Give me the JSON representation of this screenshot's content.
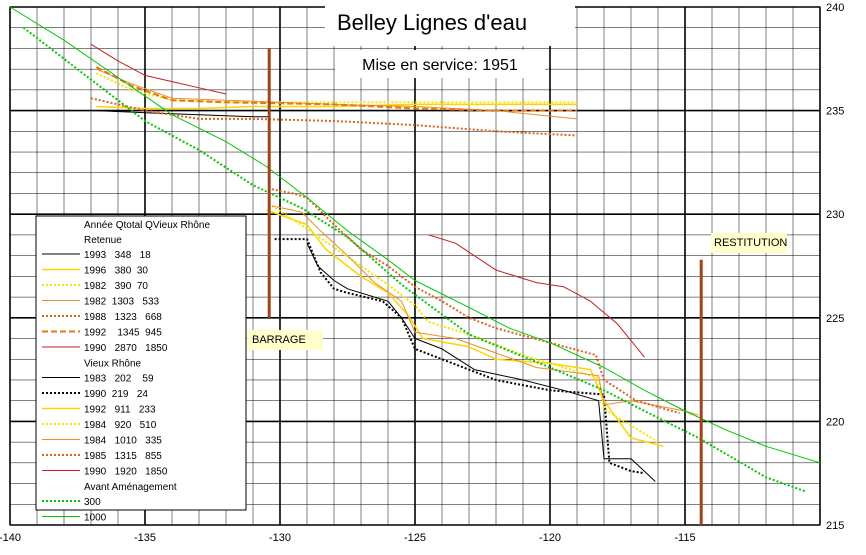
{
  "chart_data": {
    "type": "line",
    "title": "Belley Lignes d'eau",
    "subtitle": "Mise en service: 1951",
    "xlabel": "",
    "ylabel": "",
    "xlim": [
      -140,
      -110
    ],
    "ylim": [
      215,
      240
    ],
    "x_ticks": [
      -140,
      -135,
      -130,
      -125,
      -120,
      -115
    ],
    "y_ticks": [
      215,
      220,
      225,
      230,
      235,
      240
    ],
    "grid": true,
    "legend_position": "left",
    "legend_header": "Année Qtotal  QVieux Rhône",
    "annotations": [
      {
        "text": "BARRAGE",
        "x": -130.4
      },
      {
        "text": "RESTITUTION",
        "x": -114.4
      }
    ],
    "markers": [
      {
        "name": "BARRAGE",
        "x": -130.4,
        "y_from": 225,
        "y_to": 238,
        "color": "#a0441a"
      },
      {
        "name": "RESTITUTION",
        "x": -114.4,
        "y_from": 215,
        "y_to": 227.8,
        "color": "#a0441a"
      }
    ],
    "groups": [
      {
        "label": "Retenue",
        "series": [
          {
            "name": "1993   348   18",
            "color": "#000000",
            "dash": "solid",
            "width": 1,
            "points": [
              [
                -136.8,
                235.0
              ],
              [
                -135,
                234.9
              ],
              [
                -133,
                234.8
              ],
              [
                -131,
                234.7
              ],
              [
                -130.4,
                234.7
              ]
            ]
          },
          {
            "name": "1996   380  30",
            "color": "#ffd200",
            "dash": "solid",
            "width": 1.5,
            "points": [
              [
                -136.8,
                235.2
              ],
              [
                -135,
                235.1
              ],
              [
                -133,
                235.1
              ],
              [
                -131,
                235.2
              ],
              [
                -128,
                235.2
              ],
              [
                -125,
                235.3
              ],
              [
                -122,
                235.3
              ],
              [
                -119,
                235.3
              ]
            ]
          },
          {
            "name": "1982   390  70",
            "color": "#f2e600",
            "dash": "dot",
            "width": 2,
            "points": [
              [
                -136.8,
                236.8
              ],
              [
                -135.5,
                236.0
              ],
              [
                -134,
                235.5
              ],
              [
                -132,
                235.4
              ],
              [
                -128,
                235.4
              ],
              [
                -125,
                235.4
              ],
              [
                -122,
                235.4
              ],
              [
                -119,
                235.4
              ]
            ]
          },
          {
            "name": "1982  1303   533",
            "color": "#f08c28",
            "dash": "solid",
            "width": 1,
            "points": [
              [
                -136.8,
                237.0
              ],
              [
                -135.5,
                236.3
              ],
              [
                -134,
                235.6
              ],
              [
                -132,
                235.5
              ],
              [
                -128,
                235.3
              ],
              [
                -125,
                235.2
              ],
              [
                -122,
                235.0
              ],
              [
                -119,
                234.6
              ]
            ]
          },
          {
            "name": "1988   1323   668",
            "color": "#e0621e",
            "dash": "dot",
            "width": 2,
            "points": [
              [
                -137,
                235.6
              ],
              [
                -135,
                235.0
              ],
              [
                -133,
                234.6
              ],
              [
                -131,
                234.6
              ],
              [
                -128,
                234.5
              ],
              [
                -125,
                234.3
              ],
              [
                -122,
                234.0
              ],
              [
                -119,
                233.8
              ]
            ]
          },
          {
            "name": "1992    1345  945",
            "color": "#e07814",
            "dash": "dash",
            "width": 2,
            "points": [
              [
                -136.8,
                237.1
              ],
              [
                -135.5,
                236.2
              ],
              [
                -134,
                235.5
              ],
              [
                -132,
                235.4
              ],
              [
                -128,
                235.3
              ],
              [
                -125,
                235.1
              ],
              [
                -122,
                235.0
              ],
              [
                -119,
                235.0
              ]
            ]
          },
          {
            "name": "1990   2870   1850",
            "color": "#c81e1e",
            "dash": "solid",
            "width": 1,
            "points": [
              [
                -137,
                238.2
              ],
              [
                -136,
                237.4
              ],
              [
                -135,
                236.7
              ],
              [
                -134,
                236.4
              ],
              [
                -133,
                236.1
              ],
              [
                -132,
                235.8
              ]
            ]
          }
        ]
      },
      {
        "label": "Vieux Rhône",
        "series": [
          {
            "name": "1983   202    59",
            "color": "#000000",
            "dash": "solid",
            "width": 1,
            "points": [
              [
                -129,
                228.6
              ],
              [
                -128.6,
                227.5
              ],
              [
                -128,
                226.8
              ],
              [
                -127.5,
                226.4
              ],
              [
                -126,
                225.8
              ],
              [
                -125.5,
                225.0
              ],
              [
                -125,
                224.0
              ],
              [
                -124,
                223.5
              ],
              [
                -122.8,
                222.5
              ],
              [
                -121,
                222.0
              ],
              [
                -119.5,
                221.5
              ],
              [
                -118.2,
                221.0
              ],
              [
                -118,
                218.2
              ],
              [
                -117,
                218.2
              ],
              [
                -116.1,
                217.1
              ]
            ]
          },
          {
            "name": "1990  219   24",
            "color": "#000000",
            "dash": "dot",
            "width": 2,
            "points": [
              [
                -130.2,
                228.8
              ],
              [
                -129,
                228.8
              ],
              [
                -128.5,
                227.2
              ],
              [
                -128,
                226.4
              ],
              [
                -127.5,
                226.2
              ],
              [
                -126.2,
                225.8
              ],
              [
                -125.5,
                225.0
              ],
              [
                -125,
                223.5
              ],
              [
                -124,
                223.0
              ],
              [
                -122,
                222.0
              ],
              [
                -120,
                221.5
              ],
              [
                -118,
                221.3
              ],
              [
                -117.8,
                218.0
              ],
              [
                -117,
                217.6
              ],
              [
                -116.5,
                217.5
              ]
            ]
          },
          {
            "name": "1992   911   233",
            "color": "#ffd200",
            "dash": "solid",
            "width": 1.5,
            "points": [
              [
                -130.5,
                230.2
              ],
              [
                -129,
                229.5
              ],
              [
                -128.3,
                228.3
              ],
              [
                -127,
                227.0
              ],
              [
                -126,
                226.2
              ],
              [
                -125.3,
                225.2
              ],
              [
                -124.7,
                224.0
              ],
              [
                -123,
                223.6
              ],
              [
                -122,
                223.0
              ],
              [
                -120,
                222.8
              ],
              [
                -118.5,
                222.5
              ],
              [
                -118,
                221.0
              ],
              [
                -117,
                219.2
              ],
              [
                -115.8,
                218.8
              ]
            ]
          },
          {
            "name": "1984   920   510",
            "color": "#f2e600",
            "dash": "dot",
            "width": 2,
            "points": [
              [
                -130.3,
                230.4
              ],
              [
                -129,
                229.3
              ],
              [
                -128,
                228.4
              ],
              [
                -127,
                227.5
              ],
              [
                -126,
                226.6
              ],
              [
                -125,
                225.6
              ],
              [
                -124.5,
                224.8
              ],
              [
                -123,
                224.2
              ],
              [
                -121,
                223.2
              ],
              [
                -119.5,
                222.6
              ],
              [
                -118.2,
                222.1
              ],
              [
                -118,
                220.6
              ],
              [
                -117,
                219.8
              ],
              [
                -116,
                219.0
              ]
            ]
          },
          {
            "name": "1984   1010   335",
            "color": "#f08c28",
            "dash": "solid",
            "width": 1,
            "points": [
              [
                -130.3,
                230.4
              ],
              [
                -129.2,
                230.1
              ],
              [
                -128.5,
                229.2
              ],
              [
                -127.5,
                228.0
              ],
              [
                -126.5,
                226.7
              ],
              [
                -125.5,
                225.8
              ],
              [
                -125,
                224.3
              ],
              [
                -123.5,
                224.0
              ],
              [
                -122,
                223.3
              ],
              [
                -120.5,
                222.6
              ],
              [
                -118.2,
                222.2
              ],
              [
                -118,
                220.8
              ],
              [
                -117,
                221.0
              ],
              [
                -115,
                220.5
              ],
              [
                -114.5,
                220.3
              ]
            ]
          },
          {
            "name": "1985   1315   855",
            "color": "#e0621e",
            "dash": "dot",
            "width": 2,
            "points": [
              [
                -130.3,
                231.2
              ],
              [
                -129.5,
                231.0
              ],
              [
                -129,
                230.8
              ],
              [
                -128,
                229.5
              ],
              [
                -127,
                228.3
              ],
              [
                -126,
                227.5
              ],
              [
                -125,
                226.5
              ],
              [
                -124,
                225.8
              ],
              [
                -123,
                225.0
              ],
              [
                -122,
                224.5
              ],
              [
                -120,
                223.8
              ],
              [
                -118.3,
                223.2
              ],
              [
                -118,
                222.0
              ],
              [
                -116.8,
                221.0
              ],
              [
                -115.2,
                220.4
              ]
            ]
          },
          {
            "name": "1990   1920   1850",
            "color": "#c81e1e",
            "dash": "solid",
            "width": 1,
            "points": [
              [
                -124.5,
                229.0
              ],
              [
                -123.5,
                228.6
              ],
              [
                -122,
                227.3
              ],
              [
                -120.5,
                226.7
              ],
              [
                -119.5,
                226.5
              ],
              [
                -118.5,
                225.8
              ],
              [
                -117.5,
                224.7
              ],
              [
                -116.5,
                223.1
              ]
            ]
          }
        ]
      },
      {
        "label": "Avant Aménagement",
        "series": [
          {
            "name": "300",
            "color": "#00c800",
            "dash": "dot",
            "width": 2,
            "points": [
              [
                -139.5,
                239.0
              ],
              [
                -138,
                237.5
              ],
              [
                -136.8,
                236.3
              ],
              [
                -135,
                234.5
              ],
              [
                -133,
                233.1
              ],
              [
                -131,
                231.4
              ],
              [
                -129.2,
                230.3
              ],
              [
                -127.5,
                228.9
              ],
              [
                -125.5,
                226.6
              ],
              [
                -123,
                224.2
              ],
              [
                -120,
                222.6
              ],
              [
                -118,
                221.5
              ],
              [
                -116.5,
                220.5
              ],
              [
                -114.5,
                219.2
              ],
              [
                -112,
                217.3
              ],
              [
                -110.5,
                216.6
              ]
            ]
          },
          {
            "name": "1000",
            "color": "#00c800",
            "dash": "solid",
            "width": 1,
            "points": [
              [
                -140,
                240.0
              ],
              [
                -138,
                238.4
              ],
              [
                -136,
                236.6
              ],
              [
                -134,
                234.8
              ],
              [
                -132,
                233.5
              ],
              [
                -130.5,
                232.3
              ],
              [
                -129,
                230.8
              ],
              [
                -127.5,
                229.2
              ],
              [
                -126,
                227.8
              ],
              [
                -125,
                226.8
              ],
              [
                -123,
                225.5
              ],
              [
                -121.5,
                224.5
              ],
              [
                -120,
                223.8
              ],
              [
                -118,
                222.6
              ],
              [
                -116.5,
                221.5
              ],
              [
                -115,
                220.5
              ],
              [
                -113.5,
                219.6
              ],
              [
                -112,
                218.8
              ],
              [
                -110,
                218.0
              ]
            ]
          }
        ]
      }
    ]
  }
}
